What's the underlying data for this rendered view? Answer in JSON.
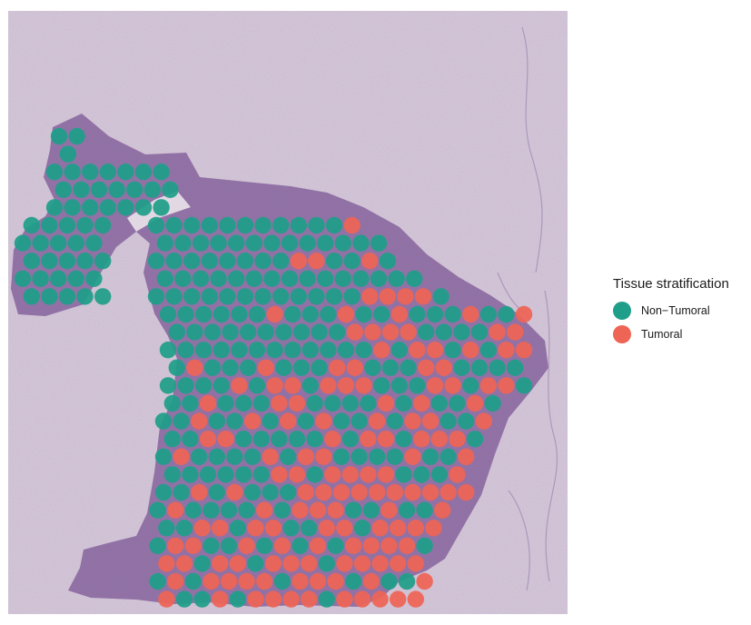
{
  "legend": {
    "title": "Tissue stratification",
    "items": [
      {
        "label": "Non−Tumoral",
        "color": "#1f9e89"
      },
      {
        "label": "Tumoral",
        "color": "#ee6455"
      }
    ]
  },
  "colors": {
    "background": "#ffffff",
    "slide": "#d6cbd9",
    "tissue": "#8f70a3",
    "tissue_dark": "#5e3f7e",
    "non_tumoral": "#1f9e89",
    "tumoral": "#ee6455"
  }
}
